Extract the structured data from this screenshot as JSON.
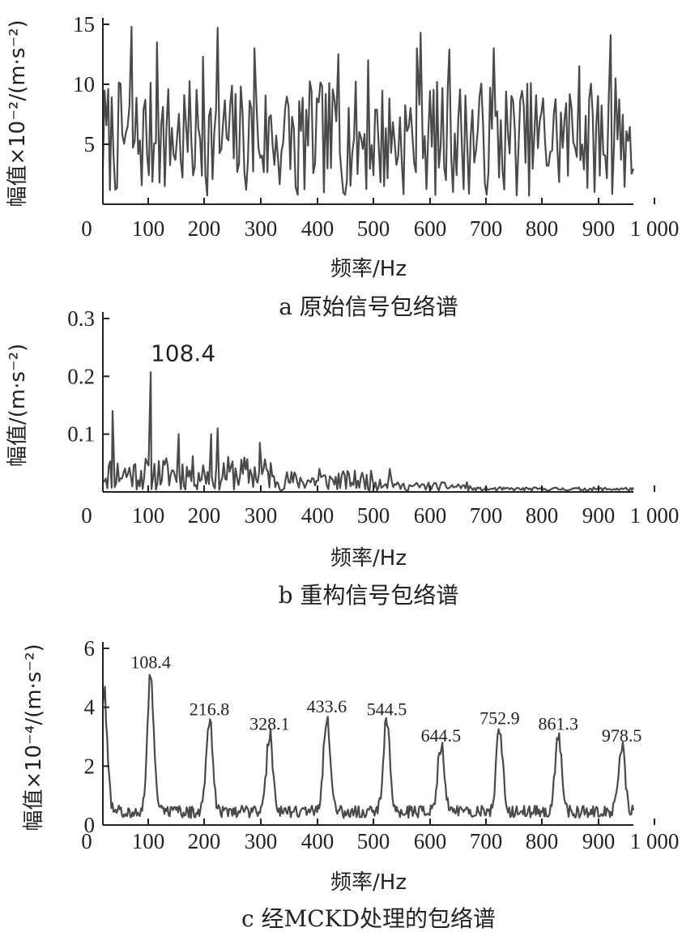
{
  "chart_data": [
    {
      "type": "line",
      "ylabel": "幅值×10⁻²/(m·s⁻²)",
      "xlabel": "频率/Hz",
      "caption": "a 原始信号包络谱",
      "xlim": [
        20,
        1000
      ],
      "ylim": [
        0,
        15
      ],
      "xticks": [
        "0",
        "100",
        "200",
        "300",
        "400",
        "500",
        "600",
        "700",
        "800",
        "900",
        "1 000"
      ],
      "yticks": [
        "5",
        "10",
        "15"
      ],
      "ytick_values": [
        5,
        10,
        15
      ],
      "noise": {
        "seed": 7,
        "n": 300,
        "base": 5.5,
        "amp": 4.8,
        "min": 0.3,
        "max": 14.5
      },
      "x": [
        73,
        120,
        205,
        232,
        300,
        380,
        455,
        510,
        600,
        607,
        660,
        742,
        900,
        958,
        967
      ],
      "values": [
        14.8,
        13.5,
        12.3,
        14.7,
        13.0,
        0.8,
        12.5,
        12.0,
        13.0,
        14.3,
        12.9,
        13.0,
        11.5,
        14.1,
        10.5
      ],
      "annotations": []
    },
    {
      "type": "line",
      "ylabel": "幅值/(m·s⁻²)",
      "xlabel": "频率/Hz",
      "caption": "b 重构信号包络谱",
      "xlim": [
        20,
        1000
      ],
      "ylim": [
        0,
        0.3
      ],
      "xticks": [
        "0",
        "100",
        "200",
        "300",
        "400",
        "500",
        "600",
        "700",
        "800",
        "900",
        "1 000"
      ],
      "yticks": [
        "0.1",
        "0.2",
        "0.3"
      ],
      "ytick_values": [
        0.1,
        0.2,
        0.3
      ],
      "noise": {
        "seed": 11,
        "n": 360,
        "decay": [
          0.06,
          0.035,
          0.015,
          0.006
        ],
        "floor": 0.002
      },
      "x": [
        38,
        108.4,
        160,
        220,
        232,
        310,
        330,
        420,
        550
      ],
      "values": [
        0.14,
        0.207,
        0.1,
        0.1,
        0.11,
        0.085,
        0.05,
        0.04,
        0.04
      ],
      "annotations": [
        {
          "x": 108.4,
          "text": "108.4"
        }
      ]
    },
    {
      "type": "line",
      "ylabel": "幅值×10⁻⁴/(m·s⁻²)",
      "xlabel": "频率/Hz",
      "caption": "c 经MCKD处理的包络谱",
      "xlim": [
        20,
        1000
      ],
      "ylim": [
        0,
        6
      ],
      "xticks": [
        "0",
        "100",
        "200",
        "300",
        "400",
        "500",
        "600",
        "700",
        "800",
        "900",
        "1 000"
      ],
      "yticks": [
        "0",
        "2",
        "4",
        "6"
      ],
      "ytick_values": [
        0,
        2,
        4,
        6
      ],
      "noise": {
        "seed": 23,
        "n": 500,
        "base": 0.45,
        "amp": 0.35
      },
      "x": [
        22,
        108.4,
        216.8,
        328.1,
        433.6,
        544.5,
        644.5,
        752.9,
        861.3,
        978.5
      ],
      "values": [
        4.4,
        5.0,
        3.4,
        2.9,
        3.5,
        3.4,
        2.5,
        3.1,
        2.9,
        2.5
      ],
      "annotations": [
        {
          "x": 108.4,
          "text": "108.4"
        },
        {
          "x": 216.8,
          "text": "216.8"
        },
        {
          "x": 328.1,
          "text": "328.1"
        },
        {
          "x": 433.6,
          "text": "433.6"
        },
        {
          "x": 544.5,
          "text": "544.5"
        },
        {
          "x": 644.5,
          "text": "644.5"
        },
        {
          "x": 752.9,
          "text": "752.9"
        },
        {
          "x": 861.3,
          "text": "861.3"
        },
        {
          "x": 978.5,
          "text": "978.5"
        }
      ]
    }
  ],
  "colors": {
    "line": "#4a4a4a",
    "axis": "#222222"
  }
}
